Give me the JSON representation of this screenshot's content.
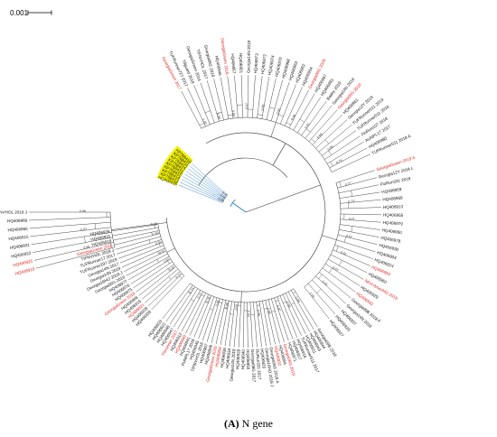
{
  "scale_bar": {
    "label": "0.001"
  },
  "caption": {
    "panel": "(A)",
    "text": "N gene"
  },
  "colors": {
    "red": "#e0221b",
    "black": "#111111",
    "highlight": "#f2f200",
    "blue": "#2a7fc4",
    "branch": "#333333"
  },
  "groups": [
    {
      "name": "upper-right",
      "leaves": [
        {
          "label": "GeorgiaGreen 2017",
          "color": "red"
        },
        {
          "label": "TUFRunner727 2017",
          "color": "black"
        },
        {
          "label": "Tifguard 2018",
          "color": "black"
        },
        {
          "label": "GeorgiaGreen 2016",
          "color": "black"
        },
        {
          "label": "TIFNVHOL 2017",
          "color": "black"
        },
        {
          "label": "Georgia06G 2016",
          "color": "black"
        },
        {
          "label": "HQ406946",
          "color": "black"
        },
        {
          "label": "GeorgiaGreen 2016",
          "color": "red"
        },
        {
          "label": "HQ406957",
          "color": "black"
        },
        {
          "label": "HQ406951",
          "color": "black"
        },
        {
          "label": "Georgia14N 2019",
          "color": "black"
        },
        {
          "label": "HQ406973",
          "color": "black"
        },
        {
          "label": "HQ406972",
          "color": "black"
        },
        {
          "label": "HQ406974",
          "color": "black"
        },
        {
          "label": "HQ406970",
          "color": "black"
        },
        {
          "label": "HQ406968",
          "color": "black"
        },
        {
          "label": "HQ406963",
          "color": "black"
        },
        {
          "label": "HQ406962",
          "color": "black"
        },
        {
          "label": "HQ406964",
          "color": "black"
        },
        {
          "label": "Georgia06G 2019",
          "color": "red"
        },
        {
          "label": "HQ406967",
          "color": "black"
        },
        {
          "label": "HQ406981",
          "color": "black"
        },
        {
          "label": "Bailey 2019",
          "color": "black"
        },
        {
          "label": "Georgia14N 2018",
          "color": "black"
        },
        {
          "label": "Georgia06G 2018",
          "color": "red"
        },
        {
          "label": "HQ406961",
          "color": "black"
        },
        {
          "label": "Georgia12Y 2018",
          "color": "black"
        },
        {
          "label": "TUFRunner511 2019",
          "color": "black"
        },
        {
          "label": "TUFRunner511 2018",
          "color": "black"
        },
        {
          "label": "FloRun107 2018",
          "color": "black"
        },
        {
          "label": "AUNPL17 2017",
          "color": "black"
        },
        {
          "label": "HQ406980",
          "color": "black"
        },
        {
          "label": "TUFRunner511 2018 A",
          "color": "black"
        }
      ]
    },
    {
      "name": "right",
      "leaves": [
        {
          "label": "GeorgiaGreen 2019 A",
          "color": "red"
        },
        {
          "label": "Georgia12Y 2018 L",
          "color": "black"
        },
        {
          "label": "FloRun331 2018",
          "color": "black"
        },
        {
          "label": "HQ406959",
          "color": "black"
        },
        {
          "label": "HQ406969",
          "color": "black"
        },
        {
          "label": "HQ406913",
          "color": "black"
        },
        {
          "label": "HQ406955",
          "color": "black"
        },
        {
          "label": "HQ406979",
          "color": "black"
        },
        {
          "label": "HQ406960",
          "color": "black"
        },
        {
          "label": "HQ406978",
          "color": "black"
        },
        {
          "label": "HQ406930",
          "color": "black"
        },
        {
          "label": "HQ406904",
          "color": "black"
        },
        {
          "label": "HQ406924",
          "color": "black"
        },
        {
          "label": "HQ406954",
          "color": "red"
        },
        {
          "label": "HQ406962",
          "color": "black"
        },
        {
          "label": "NEH AmenHG 2019",
          "color": "red"
        },
        {
          "label": "HQ406929",
          "color": "black"
        },
        {
          "label": "HQ406942",
          "color": "red"
        },
        {
          "label": "Georgia09B 2018 F",
          "color": "black"
        },
        {
          "label": "Georgia14N 2018",
          "color": "black"
        },
        {
          "label": "HQ406937",
          "color": "black"
        },
        {
          "label": "HQ406925",
          "color": "black"
        },
        {
          "label": "HQ406927",
          "color": "black"
        }
      ]
    },
    {
      "name": "bottom",
      "leaves": [
        {
          "label": "Georgia09B 2016",
          "color": "black"
        },
        {
          "label": "HQ406944",
          "color": "black"
        },
        {
          "label": "HQ406943",
          "color": "black"
        },
        {
          "label": "HQ406911",
          "color": "black"
        },
        {
          "label": "TUFRunner511 2017",
          "color": "black"
        },
        {
          "label": "HQ406916",
          "color": "black"
        },
        {
          "label": "HQ406917",
          "color": "black"
        },
        {
          "label": "HQ406971",
          "color": "black"
        },
        {
          "label": "Georgia06G 2019",
          "color": "red"
        },
        {
          "label": "HQ406956",
          "color": "black"
        },
        {
          "label": "HQ406932",
          "color": "red"
        },
        {
          "label": "Georgia06G 2018 A",
          "color": "black"
        },
        {
          "label": "Georgia16HO 2018 J",
          "color": "black"
        },
        {
          "label": "HQ406920",
          "color": "black"
        },
        {
          "label": "FloRun331 2017",
          "color": "black"
        },
        {
          "label": "Georgia06G 2017",
          "color": "black"
        },
        {
          "label": "HQ406950",
          "color": "black"
        },
        {
          "label": "HQ406940",
          "color": "black"
        },
        {
          "label": "HQ406928",
          "color": "black"
        },
        {
          "label": "Georgia14N 2018",
          "color": "black"
        },
        {
          "label": "HQ406934",
          "color": "black"
        },
        {
          "label": "HQ406938",
          "color": "black"
        },
        {
          "label": "HQ406958",
          "color": "red"
        },
        {
          "label": "GeorgiaGreen 2016",
          "color": "red"
        },
        {
          "label": "HQ406909",
          "color": "black"
        },
        {
          "label": "HQ406907",
          "color": "black"
        },
        {
          "label": "TIFNVHOL 2016",
          "color": "black"
        },
        {
          "label": "HQ406945",
          "color": "black"
        },
        {
          "label": "AUNPL17 2016",
          "color": "black"
        },
        {
          "label": "HQ406941",
          "color": "black"
        },
        {
          "label": "HQ406949",
          "color": "red"
        },
        {
          "label": "HQ406912",
          "color": "black"
        },
        {
          "label": "Florunner 2017",
          "color": "red"
        },
        {
          "label": "HQ406947",
          "color": "black"
        },
        {
          "label": "HQ406948",
          "color": "black"
        },
        {
          "label": "HQ406922",
          "color": "black"
        },
        {
          "label": "HQ406933",
          "color": "black"
        }
      ]
    },
    {
      "name": "lower-left",
      "leaves": [
        {
          "label": "HQ406936",
          "color": "black"
        },
        {
          "label": "HQ406939",
          "color": "black"
        },
        {
          "label": "HQ406921",
          "color": "red"
        },
        {
          "label": "HQ406915",
          "color": "black"
        },
        {
          "label": "HQ406966",
          "color": "black"
        },
        {
          "label": "GeorgiaGreen 2018",
          "color": "red"
        },
        {
          "label": "HQ406975",
          "color": "black"
        },
        {
          "label": "HQ406976",
          "color": "black"
        },
        {
          "label": "HQ406977",
          "color": "black"
        },
        {
          "label": "Georgia06G 2019",
          "color": "black"
        },
        {
          "label": "Georgia16HO 2018 J",
          "color": "black"
        },
        {
          "label": "Georgia14N 2019",
          "color": "black"
        },
        {
          "label": "Georgia14N 2017",
          "color": "black"
        },
        {
          "label": "TUFRunner297 2019",
          "color": "black"
        },
        {
          "label": "TUFRunner17 2017",
          "color": "black"
        },
        {
          "label": "TIFNVHOL 2018 J",
          "color": "black"
        },
        {
          "label": "GeorgiaGreen 2019",
          "color": "red"
        },
        {
          "label": "HQ406918",
          "color": "black"
        },
        {
          "label": "HQ406931",
          "color": "black"
        },
        {
          "label": "HQ406926",
          "color": "black"
        }
      ]
    },
    {
      "name": "left-outgroup",
      "leaves": [
        {
          "label": "HQ406919",
          "color": "red"
        },
        {
          "label": "HQ406925",
          "color": "red"
        },
        {
          "label": "HQ406923",
          "color": "black"
        },
        {
          "label": "HQ406931",
          "color": "black"
        },
        {
          "label": "HQ406915",
          "color": "black"
        },
        {
          "label": "HQ406966",
          "color": "black"
        },
        {
          "label": "HQ406968",
          "color": "black"
        },
        {
          "label": "TIFNVHOL 2018 J",
          "color": "black"
        }
      ]
    },
    {
      "name": "highlighted",
      "leaves": [
        {
          "label": "HQ406935",
          "color": "highlight"
        },
        {
          "label": "KP768413",
          "color": "highlight"
        },
        {
          "label": "KP768414",
          "color": "highlight"
        },
        {
          "label": "KP768415",
          "color": "highlight"
        },
        {
          "label": "KP768416",
          "color": "highlight"
        },
        {
          "label": "KP768417",
          "color": "highlight"
        },
        {
          "label": "KP768412",
          "color": "highlight"
        },
        {
          "label": "KP768411",
          "color": "highlight"
        },
        {
          "label": "KP768418",
          "color": "highlight"
        }
      ]
    }
  ],
  "bootstrap_values": [
    "1.00",
    "0.99",
    "0.98",
    "0.97",
    "0.96",
    "0.95",
    "0.94",
    "0.91",
    "0.89",
    "0.85",
    "0.79",
    "0.77",
    "0.73",
    "0.71",
    "0.67",
    "0.61",
    "0.57",
    "0.55"
  ]
}
